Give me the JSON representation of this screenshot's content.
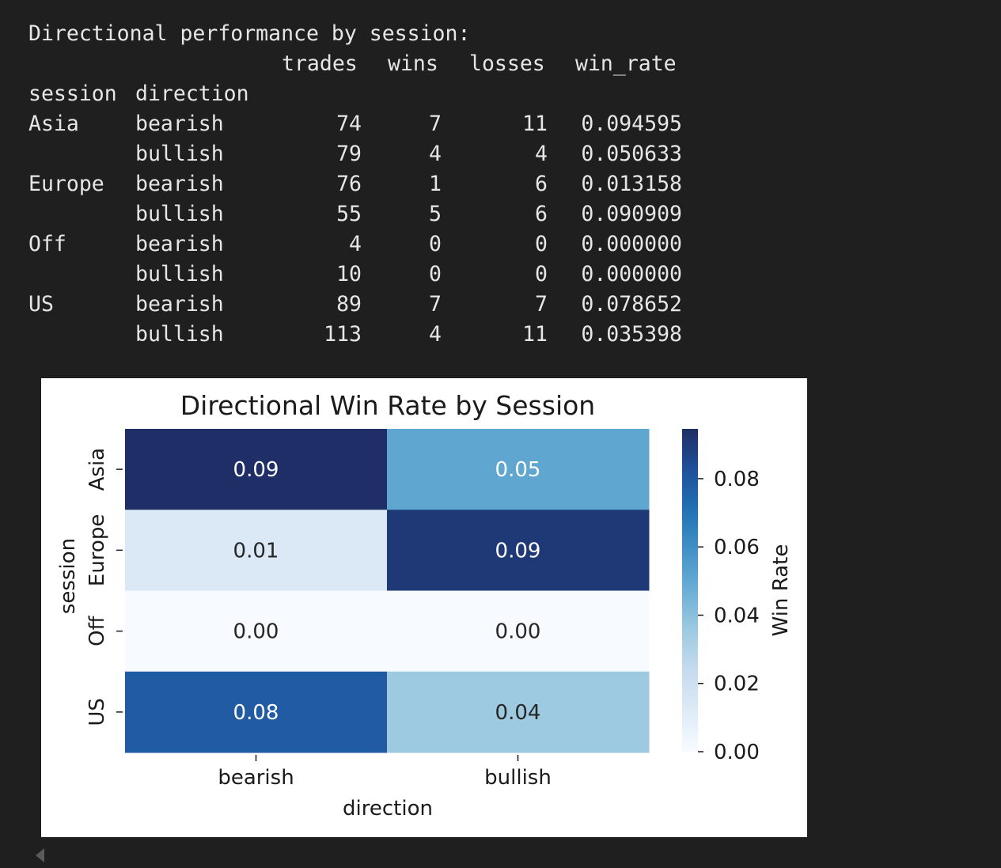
{
  "console": {
    "title": "Directional performance by session:",
    "columns": [
      "trades",
      "wins",
      "losses",
      "win_rate"
    ],
    "index_names": [
      "session",
      "direction"
    ],
    "rows": [
      {
        "session": "Asia",
        "direction": "bearish",
        "trades": "74",
        "wins": "7",
        "losses": "11",
        "win_rate": "0.094595"
      },
      {
        "session": "",
        "direction": "bullish",
        "trades": "79",
        "wins": "4",
        "losses": "4",
        "win_rate": "0.050633"
      },
      {
        "session": "Europe",
        "direction": "bearish",
        "trades": "76",
        "wins": "1",
        "losses": "6",
        "win_rate": "0.013158"
      },
      {
        "session": "",
        "direction": "bullish",
        "trades": "55",
        "wins": "5",
        "losses": "6",
        "win_rate": "0.090909"
      },
      {
        "session": "Off",
        "direction": "bearish",
        "trades": "4",
        "wins": "0",
        "losses": "0",
        "win_rate": "0.000000"
      },
      {
        "session": "",
        "direction": "bullish",
        "trades": "10",
        "wins": "0",
        "losses": "0",
        "win_rate": "0.000000"
      },
      {
        "session": "US",
        "direction": "bearish",
        "trades": "89",
        "wins": "7",
        "losses": "7",
        "win_rate": "0.078652"
      },
      {
        "session": "",
        "direction": "bullish",
        "trades": "113",
        "wins": "4",
        "losses": "11",
        "win_rate": "0.035398"
      }
    ]
  },
  "chart_data": {
    "type": "heatmap",
    "title": "Directional Win Rate by Session",
    "xlabel": "direction",
    "ylabel": "session",
    "x_categories": [
      "bearish",
      "bullish"
    ],
    "y_categories": [
      "Asia",
      "Europe",
      "Off",
      "US"
    ],
    "values": [
      [
        0.094595,
        0.050633
      ],
      [
        0.013158,
        0.090909
      ],
      [
        0.0,
        0.0
      ],
      [
        0.078652,
        0.035398
      ]
    ],
    "annotations": [
      [
        "0.09",
        "0.05"
      ],
      [
        "0.01",
        "0.09"
      ],
      [
        "0.00",
        "0.00"
      ],
      [
        "0.08",
        "0.04"
      ]
    ],
    "colorbar": {
      "label": "Win Rate",
      "range": [
        0.0,
        0.094595
      ],
      "ticks": [
        0.0,
        0.02,
        0.04,
        0.06,
        0.08
      ],
      "tick_labels": [
        "0.00",
        "0.02",
        "0.04",
        "0.06",
        "0.08"
      ]
    },
    "colormap": "Blues"
  }
}
